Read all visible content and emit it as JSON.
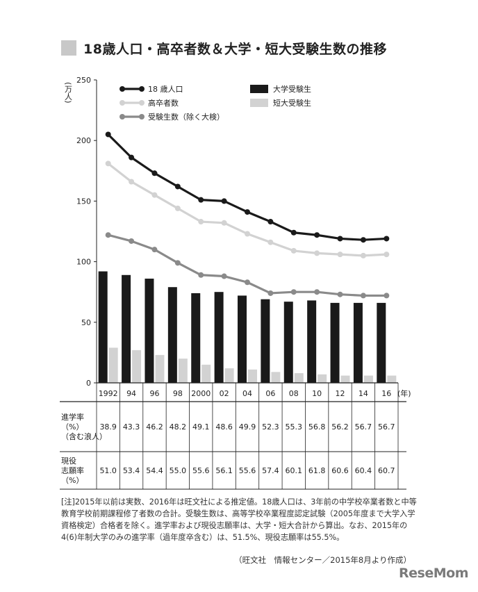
{
  "title": "18歳人口・高卒者数＆大学・短大受験生数の推移",
  "chart_data": {
    "type": "bar+line",
    "categories": [
      "1992",
      "94",
      "96",
      "98",
      "2000",
      "02",
      "04",
      "06",
      "08",
      "10",
      "12",
      "14",
      "16"
    ],
    "x_unit": "(年)",
    "y_unit": "(万人)",
    "ylim": [
      0,
      250
    ],
    "yticks": [
      0,
      50,
      100,
      150,
      200,
      250
    ],
    "series": [
      {
        "name": "18 歳人口",
        "kind": "line",
        "color": "#1a1a1a",
        "values": [
          205,
          186,
          173,
          162,
          151,
          150,
          141,
          133,
          124,
          122,
          119,
          118,
          119
        ]
      },
      {
        "name": "高卒者数",
        "kind": "line",
        "color": "#d2d2d2",
        "values": [
          181,
          166,
          155,
          144,
          133,
          132,
          123,
          116,
          109,
          107,
          106,
          105,
          106
        ]
      },
      {
        "name": "受験生数（除く大検）",
        "kind": "line",
        "color": "#8a8a8a",
        "values": [
          122,
          117,
          110,
          99,
          89,
          88,
          83,
          74,
          75,
          75,
          73,
          72,
          72
        ]
      },
      {
        "name": "大学受験生",
        "kind": "bar",
        "color": "#1a1a1a",
        "values": [
          92,
          89,
          86,
          79,
          74,
          75,
          72,
          69,
          67,
          68,
          66,
          66,
          66
        ]
      },
      {
        "name": "短大受験生",
        "kind": "bar",
        "color": "#d2d2d2",
        "values": [
          29,
          27,
          23,
          20,
          15,
          12,
          11,
          9,
          8,
          7,
          6,
          6,
          6
        ]
      }
    ],
    "table": [
      {
        "label": [
          "進学率",
          "（%）",
          "（含む浪人）"
        ],
        "values": [
          "38.9",
          "43.3",
          "46.2",
          "48.2",
          "49.1",
          "48.6",
          "49.9",
          "52.3",
          "55.3",
          "56.8",
          "56.2",
          "56.7",
          "56.7"
        ]
      },
      {
        "label": [
          "現役",
          "志願率",
          "（%）"
        ],
        "values": [
          "51.0",
          "53.4",
          "54.4",
          "55.0",
          "55.6",
          "56.1",
          "55.6",
          "57.4",
          "60.1",
          "61.8",
          "60.6",
          "60.4",
          "60.7"
        ]
      }
    ]
  },
  "note": "[注]2015年以前は実数、2016年は旺文社による推定値。18歳人口は、3年前の中学校卒業者数と中等教育学校前期課程修了者数の合計。受験生数は、高等学校卒業程度認定試験（2005年度まで大学入学資格検定）合格者を除く。進学率および現役志願率は、大学・短大合計から算出。なお、2015年の4(6)年制大学のみの進学率（過年度卒含む）は、51.5%、現役志願率は55.5%。",
  "source": "（旺文社　情報センター／2015年8月より作成）",
  "logo": "ReseMom"
}
